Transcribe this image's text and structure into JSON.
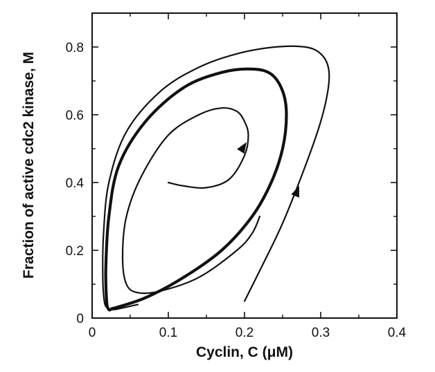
{
  "chart_data": {
    "type": "line",
    "title": "",
    "xlabel": "Cyclin, C (μM)",
    "ylabel": "Fraction of active cdc2 kinase, M",
    "xlim": [
      0,
      0.4
    ],
    "ylim": [
      0,
      0.9
    ],
    "x_ticks": [
      "0",
      "0.1",
      "0.2",
      "0.3",
      "0.4"
    ],
    "y_ticks": [
      "0",
      "0.2",
      "0.4",
      "0.6",
      "0.8"
    ],
    "x_tick_values": [
      0,
      0.1,
      0.2,
      0.3,
      0.4
    ],
    "y_tick_values": [
      0,
      0.2,
      0.4,
      0.6,
      0.8
    ],
    "grid": false,
    "series": [
      {
        "style": "thick",
        "x": [
          0.03,
          0.07,
          0.12,
          0.17,
          0.21,
          0.235,
          0.25,
          0.255,
          0.25,
          0.235,
          0.21,
          0.17,
          0.12,
          0.07,
          0.035,
          0.022,
          0.018,
          0.019,
          0.022,
          0.026,
          0.03
        ],
        "y": [
          0.03,
          0.06,
          0.12,
          0.2,
          0.3,
          0.4,
          0.5,
          0.6,
          0.67,
          0.72,
          0.735,
          0.725,
          0.68,
          0.58,
          0.45,
          0.3,
          0.15,
          0.05,
          0.025,
          0.028,
          0.03
        ]
      },
      {
        "style": "thin-outer",
        "x": [
          0.2,
          0.22,
          0.25,
          0.28,
          0.3,
          0.31,
          0.31,
          0.3,
          0.28,
          0.24,
          0.19,
          0.14,
          0.09,
          0.045,
          0.022,
          0.015,
          0.014,
          0.016,
          0.02,
          0.028,
          0.04,
          0.06
        ],
        "y": [
          0.05,
          0.14,
          0.28,
          0.45,
          0.58,
          0.68,
          0.74,
          0.78,
          0.8,
          0.8,
          0.78,
          0.74,
          0.67,
          0.55,
          0.4,
          0.25,
          0.12,
          0.05,
          0.03,
          0.025,
          0.03,
          0.04
        ]
      },
      {
        "style": "thin-inner",
        "x": [
          0.1,
          0.12,
          0.15,
          0.18,
          0.2,
          0.205,
          0.2,
          0.19,
          0.17,
          0.14,
          0.1,
          0.065,
          0.045,
          0.04,
          0.045,
          0.06,
          0.09,
          0.14,
          0.19,
          0.21,
          0.22
        ],
        "y": [
          0.4,
          0.39,
          0.385,
          0.41,
          0.48,
          0.54,
          0.58,
          0.61,
          0.62,
          0.6,
          0.54,
          0.42,
          0.3,
          0.18,
          0.1,
          0.075,
          0.08,
          0.12,
          0.2,
          0.25,
          0.3
        ]
      }
    ],
    "arrows": [
      {
        "on": "thin-inner",
        "x": 0.2,
        "y": 0.51
      },
      {
        "on": "thin-outer",
        "x": 0.27,
        "y": 0.38
      }
    ]
  }
}
